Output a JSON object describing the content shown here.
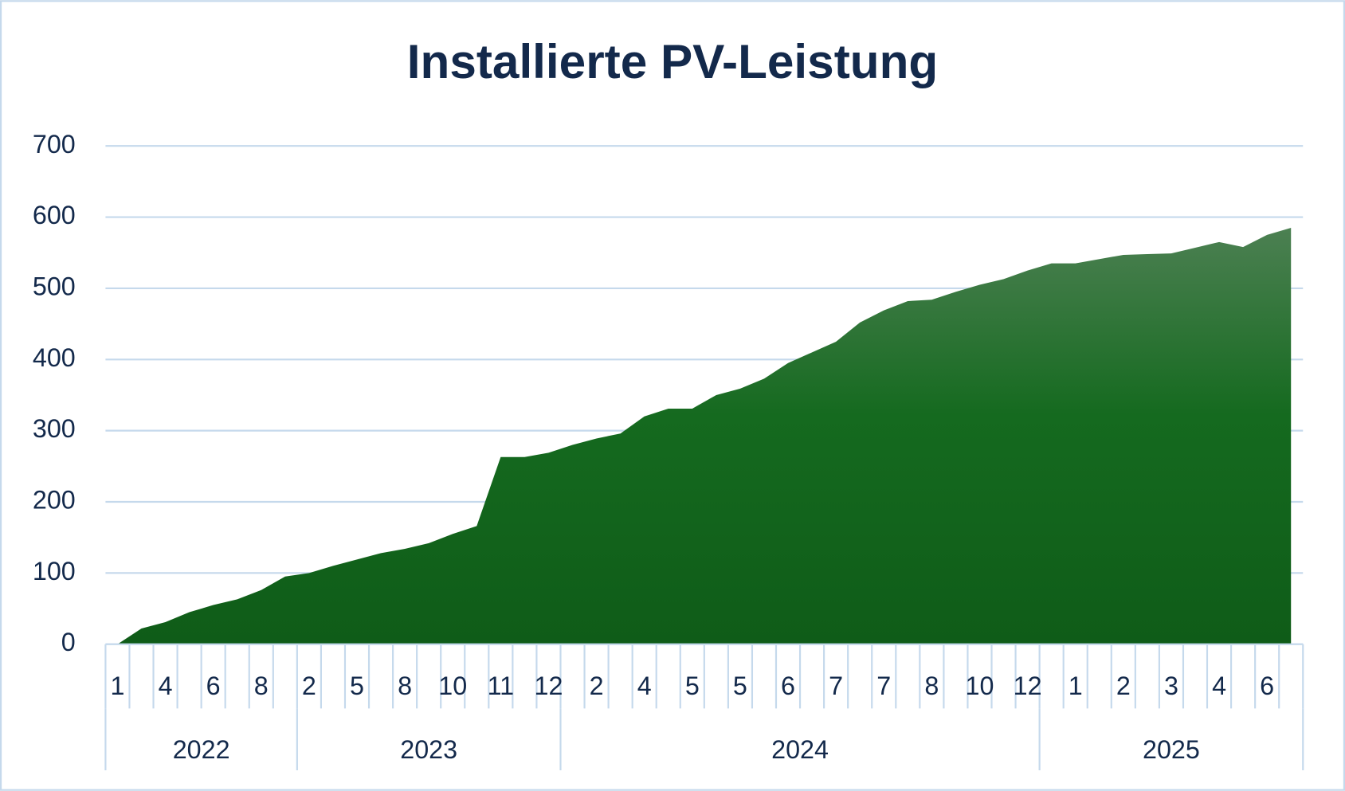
{
  "chart_data": {
    "type": "area",
    "title": "Installierte PV-Leistung",
    "categories": [
      "1",
      null,
      "4",
      null,
      "6",
      null,
      "8",
      null,
      "2",
      null,
      "5",
      null,
      "8",
      null,
      "10",
      null,
      "11",
      null,
      "12",
      null,
      "2",
      null,
      "4",
      null,
      "5",
      null,
      "5",
      null,
      "6",
      null,
      "7",
      null,
      "7",
      null,
      "8",
      null,
      "10",
      null,
      "12",
      null,
      "1",
      null,
      "2",
      null,
      "3",
      null,
      "4",
      null,
      "6",
      null
    ],
    "groups": [
      {
        "label": "2022",
        "span": 8
      },
      {
        "label": "2023",
        "span": 11
      },
      {
        "label": "2024",
        "span": 20
      },
      {
        "label": "2025",
        "span": 11
      }
    ],
    "values": [
      0,
      22,
      31,
      45,
      55,
      63,
      76,
      95,
      100,
      110,
      119,
      128,
      134,
      142,
      155,
      166,
      263,
      263,
      269,
      280,
      289,
      296,
      320,
      331,
      331,
      350,
      359,
      373,
      395,
      410,
      425,
      452,
      469,
      482,
      484,
      495,
      505,
      513,
      525,
      535,
      535,
      541,
      547,
      548,
      549,
      557,
      565,
      558,
      575,
      585
    ],
    "color": "#156a1f",
    "ylim": [
      0,
      700
    ],
    "yticks": [
      0,
      100,
      200,
      300,
      400,
      500,
      600,
      700
    ],
    "grid": true
  }
}
